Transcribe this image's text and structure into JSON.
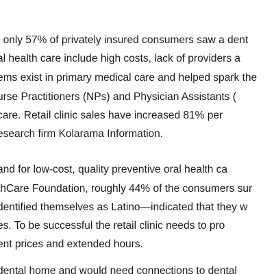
{
  "paragraphs": [
    {
      "lines": [
        ", only 57% of privately insured consumers saw a dent",
        "al health care include high costs, lack of providers a",
        "ems exist in primary medical care and helped spark the",
        "urse Practitioners (NPs) and Physician Assistants (",
        " care.  Retail clinic sales have increased 81% per",
        "esearch firm Kolarama Information."
      ]
    },
    {
      "lines": [
        "and for low-cost, quality preventive oral health ca",
        "thCare Foundation, roughly 44% of the consumers sur",
        "dentified themselves as Latino—indicated that they w",
        "es.  To be successful the retail clinic needs to pro",
        "ent prices and extended hours."
      ]
    },
    {
      "lines": [
        " dental home and would need connections to dental"
      ]
    }
  ]
}
